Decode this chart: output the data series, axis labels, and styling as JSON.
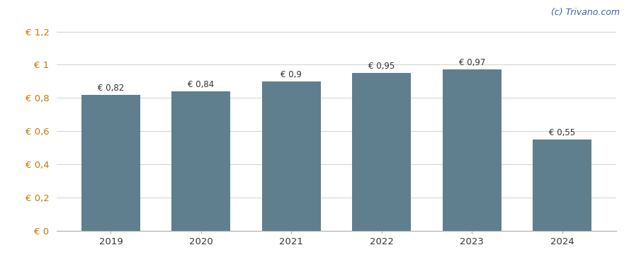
{
  "years": [
    "2019",
    "2020",
    "2021",
    "2022",
    "2023",
    "2024"
  ],
  "values": [
    0.82,
    0.84,
    0.9,
    0.95,
    0.97,
    0.55
  ],
  "labels": [
    "€ 0,82",
    "€ 0,84",
    "€ 0,9",
    "€ 0,95",
    "€ 0,97",
    "€ 0,55"
  ],
  "bar_color": "#5f7f8f",
  "background_color": "#ffffff",
  "ytick_labels": [
    "€ 0",
    "€ 0,2",
    "€ 0,4",
    "€ 0,6",
    "€ 0,8",
    "€ 1",
    "€ 1,2"
  ],
  "ytick_values": [
    0,
    0.2,
    0.4,
    0.6,
    0.8,
    1.0,
    1.2
  ],
  "ylim": [
    0,
    1.28
  ],
  "grid_color": "#d0d0d0",
  "watermark": "(c) Trivano.com",
  "watermark_color": "#4060a0",
  "ytick_color": "#cc7700",
  "xtick_color": "#333333",
  "label_color": "#333333",
  "label_fontsize": 8.5,
  "tick_fontsize": 9.5,
  "watermark_fontsize": 9,
  "bar_width": 0.65
}
